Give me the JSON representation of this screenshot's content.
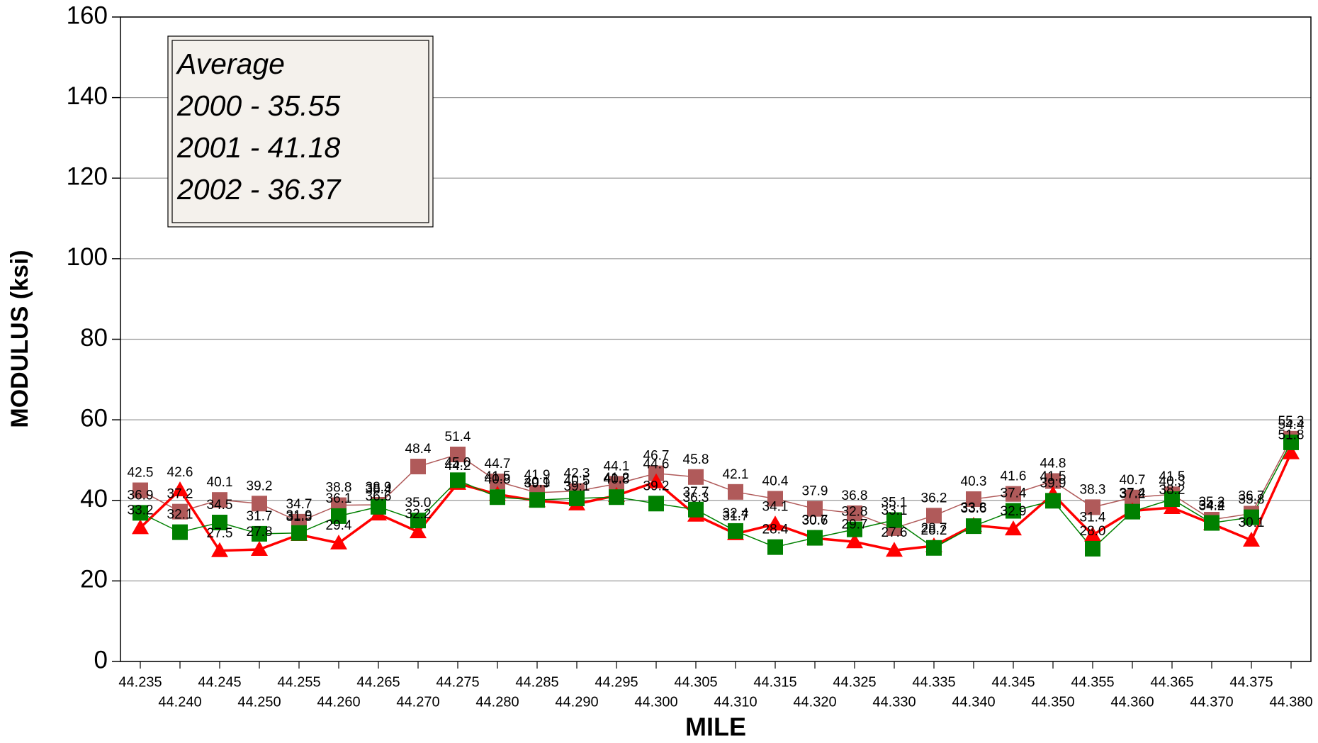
{
  "chart_data": {
    "type": "line",
    "xlabel": "MILE",
    "ylabel": "MODULUS (ksi)",
    "annotation": [
      "Average",
      "2000 - 35.55",
      "2001 - 41.18",
      "2002 - 36.37"
    ],
    "categories": [
      "44.235",
      "44.240",
      "44.245",
      "44.250",
      "44.255",
      "44.260",
      "44.265",
      "44.270",
      "44.275",
      "44.280",
      "44.285",
      "44.290",
      "44.295",
      "44.300",
      "44.305",
      "44.310",
      "44.315",
      "44.320",
      "44.325",
      "44.330",
      "44.335",
      "44.340",
      "44.345",
      "44.350",
      "44.355",
      "44.360",
      "44.365",
      "44.370",
      "44.375",
      "44.380"
    ],
    "ylim": [
      0,
      160
    ],
    "yticks": [
      0,
      20,
      40,
      60,
      80,
      100,
      120,
      140,
      160
    ],
    "grid": true,
    "series": [
      {
        "color": "#b05a5a",
        "marker": "square",
        "values": [
          42.5,
          37.2,
          40.1,
          39.2,
          34.7,
          38.8,
          38.9,
          48.4,
          51.4,
          44.7,
          41.9,
          42.3,
          44.1,
          46.7,
          45.8,
          42.1,
          40.4,
          37.9,
          36.8,
          33.1,
          36.2,
          40.3,
          41.6,
          44.8,
          38.3,
          40.7,
          41.5,
          35.2,
          36.7,
          55.3
        ],
        "value_labels": [
          "42.5",
          "37.2",
          "40.1",
          "39.2",
          "34.7",
          "38.8",
          "38.9",
          "48.4",
          "51.4",
          "44.7",
          "41.9",
          "42.3",
          "44.1",
          "46.7",
          "45.8",
          "42.1",
          "40.4",
          "37.9",
          "36.8",
          "33.1",
          "36.2",
          "40.3",
          "41.6",
          "44.8",
          "38.3",
          "40.7",
          "41.5",
          "35.2",
          "36.7",
          "55.3"
        ]
      },
      {
        "color": "#ff0000",
        "marker": "triangle",
        "values": [
          33.2,
          42.6,
          27.5,
          27.8,
          31.5,
          29.4,
          36.6,
          32.2,
          44.2,
          41.5,
          39.9,
          39.1,
          41.2,
          44.6,
          36.3,
          31.7,
          34.1,
          30.6,
          29.7,
          27.6,
          28.7,
          33.8,
          32.9,
          41.5,
          31.4,
          37.4,
          38.2,
          34.2,
          30.1,
          51.8
        ],
        "value_labels": [
          "33.2",
          "42.6",
          "27.5",
          "27.8",
          "31.5",
          "29.4",
          "36.6",
          "32.2",
          "44.2",
          "41.5",
          "39.9",
          "39.1",
          "41.2",
          "44.6",
          "36.3",
          "31.7",
          "34.1",
          "30.6",
          "29.7",
          "27.6",
          "28.7",
          "33.8",
          "32.9",
          "41.5",
          "31.4",
          "37.4",
          "38.2",
          "34.2",
          "30.1",
          "51.8"
        ]
      },
      {
        "color": "#008000",
        "marker": "square",
        "values": [
          36.9,
          32.1,
          34.5,
          31.7,
          31.9,
          36.1,
          38.4,
          35.0,
          45.0,
          40.8,
          40.1,
          40.5,
          40.8,
          39.2,
          37.7,
          32.4,
          28.4,
          30.7,
          32.8,
          35.1,
          28.2,
          33.6,
          37.4,
          39.9,
          28.0,
          37.2,
          40.3,
          34.4,
          35.8,
          54.4
        ],
        "value_labels": [
          "36.9",
          "32.1",
          "34.5",
          "31.7",
          "31.9",
          "36.1",
          "38.4",
          "35.0",
          "45.0",
          "40.8",
          "40.1",
          "40.5",
          "40.8",
          "39.2",
          "37.7",
          "32.4",
          "28.4",
          "30.7",
          "32.8",
          "35.1",
          "28.2",
          "33.6",
          "37.4",
          "39.9",
          "28.0",
          "37.2",
          "40.3",
          "34.4",
          "35.8",
          "54.4"
        ]
      }
    ]
  }
}
